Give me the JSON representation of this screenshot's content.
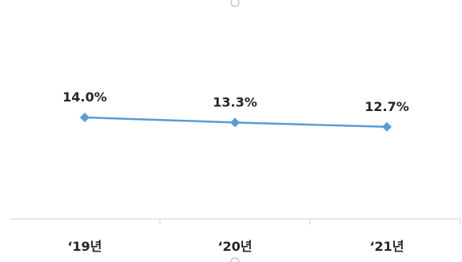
{
  "chart_data": {
    "type": "line",
    "categories": [
      "‘19년",
      "‘20년",
      "‘21년"
    ],
    "series": [
      {
        "values": [
          14.0,
          13.3,
          12.7
        ],
        "labels": [
          "14.0%",
          "13.3%",
          "12.7%"
        ],
        "color": "#5B9BD5"
      }
    ],
    "marker": "diamond",
    "grid": false,
    "legend": "none"
  }
}
